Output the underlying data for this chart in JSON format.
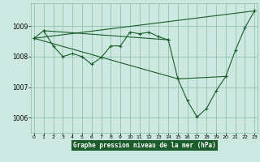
{
  "bg_color": "#cce8e0",
  "grid_color": "#88bbaa",
  "line_color": "#1a5c2a",
  "xlabel": "Graphe pression niveau de la mer (hPa)",
  "xlabel_color": "#1a5c2a",
  "xlabel_bg": "#1a5c2a",
  "ylabel_ticks": [
    1006,
    1007,
    1008,
    1009
  ],
  "xticks": [
    0,
    1,
    2,
    3,
    4,
    5,
    6,
    7,
    8,
    9,
    10,
    11,
    12,
    13,
    14,
    15,
    16,
    17,
    18,
    19,
    20,
    21,
    22,
    23
  ],
  "ylim": [
    1005.5,
    1009.75
  ],
  "xlim": [
    -0.3,
    23.3
  ],
  "series": [
    {
      "x": [
        0,
        1,
        2,
        3,
        4,
        5,
        6,
        7,
        8,
        9,
        10,
        11,
        12,
        13,
        14,
        15,
        16,
        17,
        18,
        19,
        20,
        21,
        22,
        23
      ],
      "y": [
        1008.6,
        1008.85,
        1008.35,
        1008.0,
        1008.1,
        1008.0,
        1007.75,
        1007.97,
        1008.35,
        1008.35,
        1008.8,
        1008.75,
        1008.8,
        1008.65,
        1008.55,
        1007.27,
        1006.55,
        1006.02,
        1006.3,
        1006.88,
        1007.35,
        1008.2,
        1008.95,
        1009.5
      ]
    },
    {
      "x": [
        0,
        23
      ],
      "y": [
        1008.6,
        1009.5
      ]
    },
    {
      "x": [
        0,
        15,
        20
      ],
      "y": [
        1008.6,
        1007.27,
        1007.35
      ]
    },
    {
      "x": [
        1,
        14
      ],
      "y": [
        1008.85,
        1008.55
      ]
    }
  ]
}
